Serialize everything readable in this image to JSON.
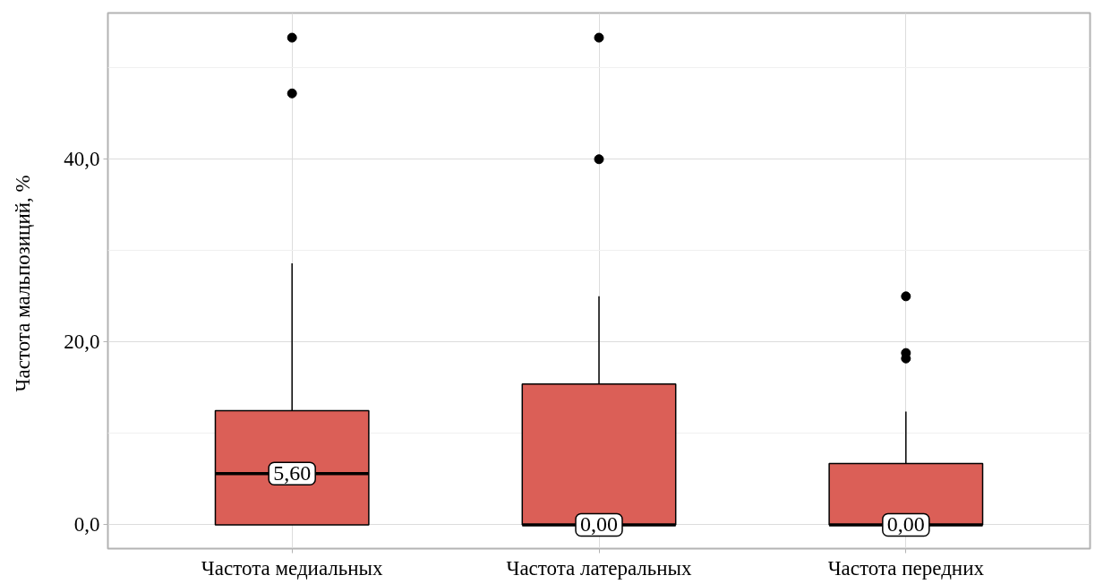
{
  "chart_data": {
    "type": "box",
    "ylabel": "Частота  мальпозиций, %",
    "categories": [
      "Частота медиальных",
      "Частота латеральных",
      "Частота передних"
    ],
    "color": "#db5f57",
    "boxes": [
      {
        "low": 0,
        "q1": 0,
        "median": 5.6,
        "q3": 12.5,
        "high": 28.6,
        "outliers": [
          47.2,
          53.3
        ]
      },
      {
        "low": 0,
        "q1": 0,
        "median": 0,
        "q3": 15.4,
        "high": 25.0,
        "outliers": [
          40.0,
          53.3
        ]
      },
      {
        "low": 0,
        "q1": 0,
        "median": 0,
        "q3": 6.7,
        "high": 12.4,
        "outliers": [
          18.2,
          18.8,
          25.0
        ]
      }
    ],
    "ylim": [
      -2.6,
      56
    ],
    "yticks": [
      {
        "value": 0,
        "label": "0,0"
      },
      {
        "value": 20,
        "label": "20,0"
      },
      {
        "value": 40,
        "label": "40,0"
      }
    ],
    "grid": true,
    "annotations": [
      {
        "text": "5,60",
        "x": "Частота медиальных",
        "y": 5.6
      },
      {
        "text": "0,00",
        "x": "Частота латеральных",
        "y": 0
      },
      {
        "text": "0,00",
        "x": "Частота передних",
        "y": 0
      }
    ]
  }
}
